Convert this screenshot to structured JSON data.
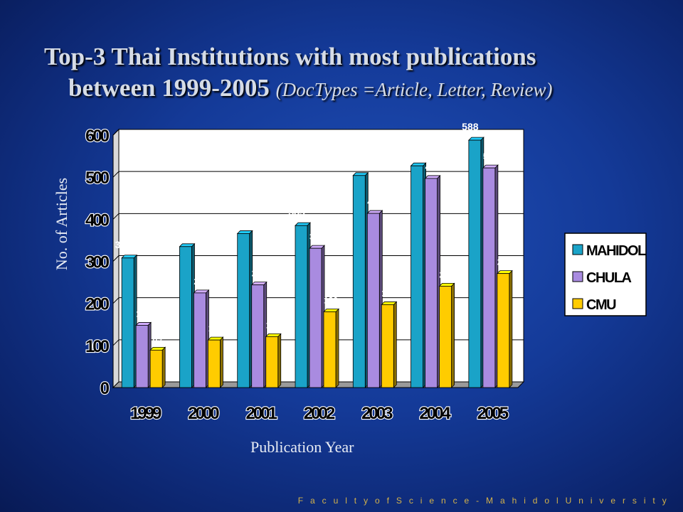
{
  "title": {
    "line1": "Top-3 Thai Institutions with most publications",
    "line2": "between 1999-2005",
    "subtitle": "(DocTypes =Article, Letter, Review)"
  },
  "footer": "F a c u l t y   o f   S c i e n c e - M a h i d o l   U n i v e r s i t y",
  "chart_data": {
    "type": "bar",
    "title": "Top-3 Thai Institutions with most publications between 1999-2005 (DocTypes =Article, Letter, Review)",
    "xlabel": "Publication Year",
    "ylabel": "No. of Articles",
    "categories": [
      "1999",
      "2000",
      "2001",
      "2002",
      "2003",
      "2004",
      "2005"
    ],
    "series": [
      {
        "name": "MAHIDOL",
        "color": "#1aa3c8",
        "values": [
          308,
          335,
          366,
          385,
          504,
          527,
          588
        ]
      },
      {
        "name": "CHULA",
        "color": "#a98be0",
        "values": [
          148,
          225,
          244,
          331,
          414,
          497,
          522
        ]
      },
      {
        "name": "CMU",
        "color": "#ffcc00",
        "values": [
          89,
          113,
          121,
          180,
          197,
          241,
          271
        ]
      }
    ],
    "ylim": [
      0,
      600
    ],
    "yticks": [
      0,
      100,
      200,
      300,
      400,
      500,
      600
    ],
    "grid": true,
    "legend_position": "right"
  }
}
